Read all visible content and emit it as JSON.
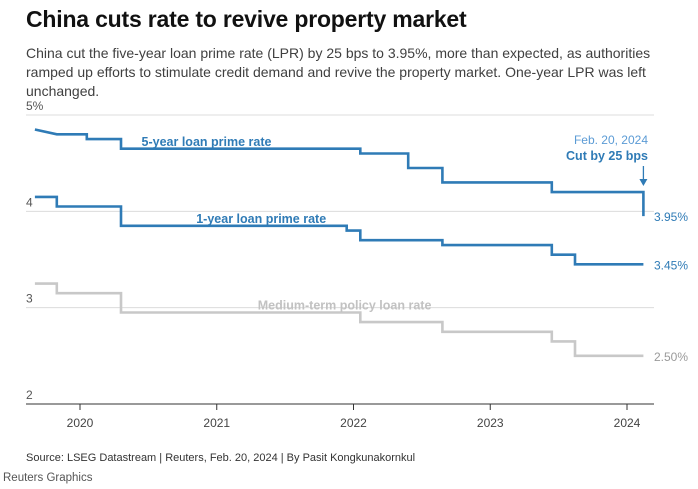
{
  "header": {
    "title": "China cuts rate to revive property market",
    "subtitle": "China cut the five-year loan prime rate (LPR) by 25 bps to 3.95%, more than expected, as authorities ramped up efforts to stimulate credit demand and revive the property market. One-year LPR was left unchanged."
  },
  "footer": {
    "source": "Source: LSEG Datastream | Reuters, Feb. 20, 2024 | By Pasit Kongkunakornkul",
    "brand": "Reuters Graphics"
  },
  "chart_data": {
    "type": "line",
    "x_axis": {
      "ticks": [
        2020,
        2021,
        2022,
        2023,
        2024
      ],
      "range": [
        2019.6,
        2024.18
      ]
    },
    "y_axis": {
      "ticks": [
        2,
        3,
        4,
        5
      ],
      "tick_labels": [
        "2",
        "3",
        "4",
        "5%"
      ],
      "range": [
        2,
        5
      ]
    },
    "grid": "horizontal",
    "series": [
      {
        "name": "5-year loan prime rate",
        "color": "#2f7bb6",
        "end_label": "3.95%",
        "points": [
          [
            2019.67,
            4.85
          ],
          [
            2019.83,
            4.8
          ],
          [
            2020.05,
            4.8
          ],
          [
            2020.05,
            4.75
          ],
          [
            2020.3,
            4.75
          ],
          [
            2020.3,
            4.65
          ],
          [
            2022.05,
            4.65
          ],
          [
            2022.05,
            4.6
          ],
          [
            2022.4,
            4.6
          ],
          [
            2022.4,
            4.45
          ],
          [
            2022.65,
            4.45
          ],
          [
            2022.65,
            4.3
          ],
          [
            2023.45,
            4.3
          ],
          [
            2023.45,
            4.2
          ],
          [
            2024.12,
            4.2
          ],
          [
            2024.12,
            3.95
          ]
        ]
      },
      {
        "name": "1-year loan prime rate",
        "color": "#2f7bb6",
        "end_label": "3.45%",
        "points": [
          [
            2019.67,
            4.15
          ],
          [
            2019.83,
            4.15
          ],
          [
            2019.83,
            4.05
          ],
          [
            2020.05,
            4.05
          ],
          [
            2020.3,
            4.05
          ],
          [
            2020.3,
            3.85
          ],
          [
            2021.95,
            3.85
          ],
          [
            2021.95,
            3.8
          ],
          [
            2022.05,
            3.8
          ],
          [
            2022.05,
            3.7
          ],
          [
            2022.65,
            3.7
          ],
          [
            2022.65,
            3.65
          ],
          [
            2023.45,
            3.65
          ],
          [
            2023.45,
            3.55
          ],
          [
            2023.62,
            3.55
          ],
          [
            2023.62,
            3.45
          ],
          [
            2024.12,
            3.45
          ]
        ]
      },
      {
        "name": "Medium-term policy loan rate",
        "color": "#c8c8c8",
        "end_label": "2.50%",
        "points": [
          [
            2019.67,
            3.25
          ],
          [
            2019.83,
            3.25
          ],
          [
            2019.83,
            3.15
          ],
          [
            2020.05,
            3.15
          ],
          [
            2020.3,
            3.15
          ],
          [
            2020.3,
            2.95
          ],
          [
            2022.05,
            2.95
          ],
          [
            2022.05,
            2.85
          ],
          [
            2022.65,
            2.85
          ],
          [
            2022.65,
            2.75
          ],
          [
            2023.45,
            2.75
          ],
          [
            2023.45,
            2.65
          ],
          [
            2023.62,
            2.65
          ],
          [
            2023.62,
            2.5
          ],
          [
            2024.12,
            2.5
          ]
        ]
      }
    ],
    "annotation": {
      "date": "Feb. 20, 2024",
      "text": "Cut by 25 bps",
      "x": 2024.12,
      "y": 4.2
    }
  }
}
